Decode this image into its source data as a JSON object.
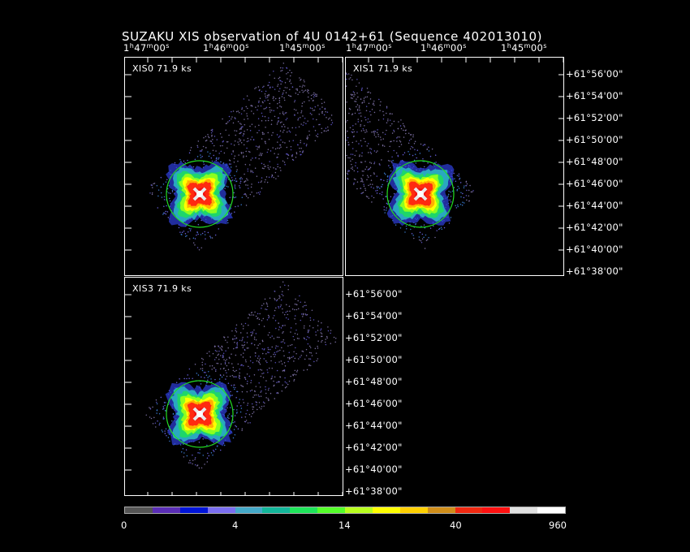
{
  "title": "SUZAKU XIS observation of 4U 0142+61  (Sequence 402013010)",
  "ra_ticks": [
    {
      "h": "1",
      "m": "47",
      "s": "00"
    },
    {
      "h": "1",
      "m": "46",
      "s": "00"
    },
    {
      "h": "1",
      "m": "45",
      "s": "00"
    }
  ],
  "dec_ticks": [
    "+61°56'00\"",
    "+61°54'00\"",
    "+61°52'00\"",
    "+61°50'00\"",
    "+61°48'00\"",
    "+61°46'00\"",
    "+61°44'00\"",
    "+61°42'00\"",
    "+61°40'00\"",
    "+61°38'00\""
  ],
  "panels": [
    {
      "name": "xis0",
      "label": "XIS0 71.9 ks",
      "angle": -42
    },
    {
      "name": "xis1",
      "label": "XIS1 71.9 ks",
      "angle": 42
    },
    {
      "name": "xis3",
      "label": "XIS3 71.9 ks",
      "angle": -42
    }
  ],
  "colorbar": {
    "colors": [
      "#555555",
      "#5a2db6",
      "#0014d8",
      "#7a6ef0",
      "#44a9c9",
      "#12b69a",
      "#1ee45a",
      "#54ff2a",
      "#b8ff1e",
      "#ffff00",
      "#ffd000",
      "#d08e1a",
      "#f02810",
      "#ff1010",
      "#e0e0e0",
      "#ffffff"
    ],
    "labels": [
      "0",
      "4",
      "14",
      "40",
      "960"
    ]
  },
  "colors": {
    "circle": "#22dd22",
    "frame": "#ffffff",
    "background": "#000000"
  }
}
